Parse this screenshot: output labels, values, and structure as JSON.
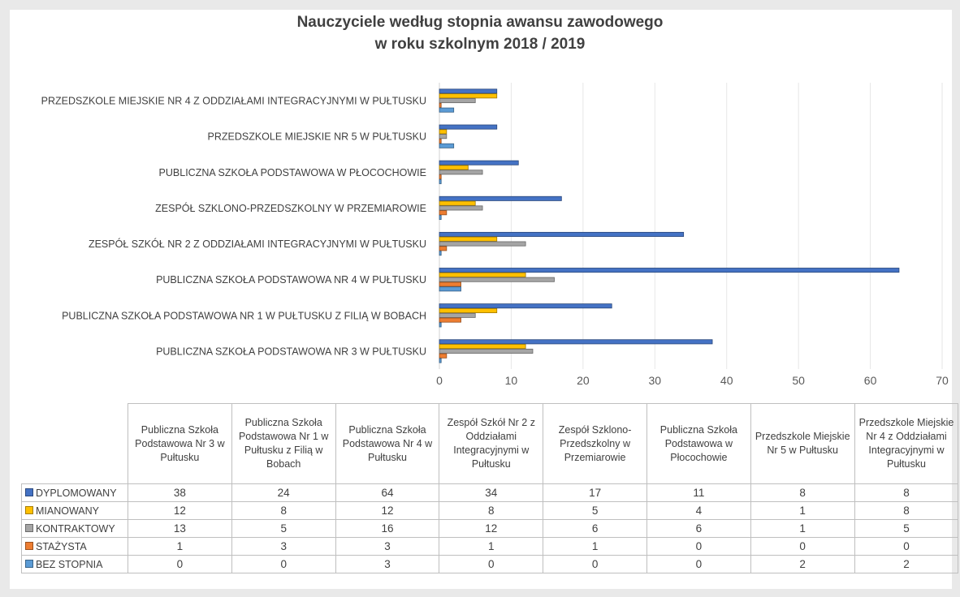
{
  "chart_data": {
    "type": "bar",
    "orientation": "horizontal",
    "title": "Nauczyciele według stopnia awansu zawodowego",
    "subtitle": "w roku szkolnym 2018 / 2019",
    "categories": [
      "PUBLICZNA SZKOŁA PODSTAWOWA NR 3 W PUŁTUSKU",
      "PUBLICZNA SZKOŁA PODSTAWOWA NR 1 W PUŁTUSKU Z FILIĄ W BOBACH",
      "PUBLICZNA SZKOŁA PODSTAWOWA NR 4 W PUŁTUSKU",
      "ZESPÓŁ SZKÓŁ NR 2 Z ODDZIAŁAMI INTEGRACYJNYMI W PUŁTUSKU",
      "ZESPÓŁ SZKLONO-PRZEDSZKOLNY W PRZEMIAROWIE",
      "PUBLICZNA SZKOŁA PODSTAWOWA W PŁOCOCHOWIE",
      "PRZEDSZKOLE MIEJSKIE NR 5 W PUŁTUSKU",
      "PRZEDSZKOLE MIEJSKIE NR 4 Z ODDZIAŁAMI INTEGRACYJNYMI W PUŁTUSKU"
    ],
    "table_headers": [
      "Publiczna Szkoła Podstawowa Nr 3 w Pułtusku",
      "Publiczna Szkoła Podstawowa Nr 1 w Pułtusku z Filią w Bobach",
      "Publiczna Szkoła Podstawowa Nr 4 w Pułtusku",
      "Zespół Szkół Nr 2 z Oddziałami Integracyjnymi w Pułtusku",
      "Zespół Szklono-Przedszkolny w Przemiarowie",
      "Publiczna Szkoła Podstawowa w Płocochowie",
      "Przedszkole Miejskie Nr 5 w Pułtusku",
      "Przedszkole Miejskie Nr 4 z Oddziałami Integracyjnymi w Pułtusku"
    ],
    "series": [
      {
        "name": "DYPLOMOWANY",
        "color": "#4472c4",
        "values": [
          38,
          24,
          64,
          34,
          17,
          11,
          8,
          8
        ]
      },
      {
        "name": "MIANOWANY",
        "color": "#ffc000",
        "values": [
          12,
          8,
          12,
          8,
          5,
          4,
          1,
          8
        ]
      },
      {
        "name": "KONTRAKTOWY",
        "color": "#a5a5a5",
        "values": [
          13,
          5,
          16,
          12,
          6,
          6,
          1,
          5
        ]
      },
      {
        "name": "STAŻYSTA",
        "color": "#ed7d31",
        "values": [
          1,
          3,
          3,
          1,
          1,
          0,
          0,
          0
        ]
      },
      {
        "name": "BEZ STOPNIA",
        "color": "#5b9bd5",
        "values": [
          0,
          0,
          3,
          0,
          0,
          0,
          2,
          2
        ]
      }
    ],
    "xlim": [
      0,
      70
    ],
    "xticks": [
      0,
      10,
      20,
      30,
      40,
      50,
      60,
      70
    ],
    "grid": true,
    "legend": "data-table"
  }
}
